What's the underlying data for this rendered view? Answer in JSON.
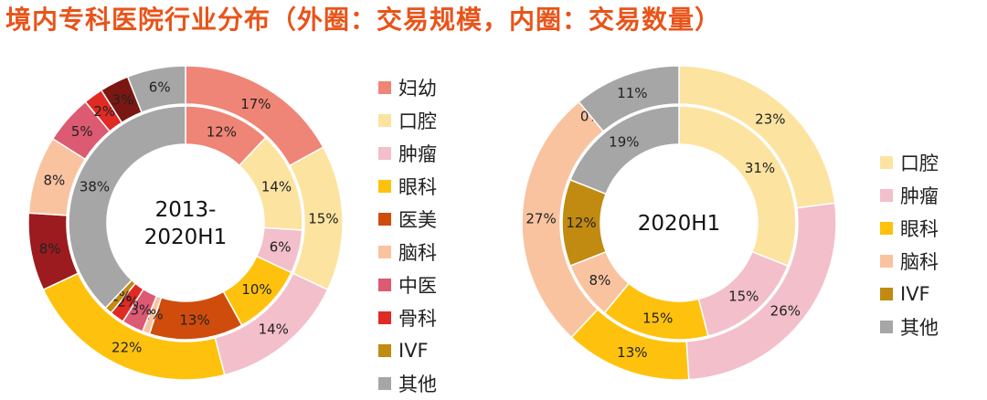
{
  "title": "境内专科医院行业分布（外圈：交易规模，内圈：交易数量）",
  "chart_data": [
    {
      "type": "donut",
      "center_label": [
        "2013-",
        "2020H1"
      ],
      "legend": [
        {
          "name": "妇幼",
          "color": "#EF8576"
        },
        {
          "name": "口腔",
          "color": "#FCE3A0"
        },
        {
          "name": "肿瘤",
          "color": "#F2BFCA"
        },
        {
          "name": "眼科",
          "color": "#FEC20E"
        },
        {
          "name": "医美",
          "color": "#D04C0C"
        },
        {
          "name": "脑科",
          "color": "#F9C3A0"
        },
        {
          "name": "中医",
          "color": "#DC5A72"
        },
        {
          "name": "骨科",
          "color": "#E02A24"
        },
        {
          "name": "IVF",
          "color": "#C18A10"
        },
        {
          "name": "其他",
          "color": "#A6A6A6"
        }
      ],
      "outer_ring": {
        "measure": "交易规模",
        "slices": [
          {
            "name": "妇幼",
            "value": 17,
            "color": "#EF8576",
            "label": "17%"
          },
          {
            "name": "口腔",
            "value": 15,
            "color": "#FCE3A0",
            "label": "15%"
          },
          {
            "name": "肿瘤",
            "value": 14,
            "color": "#F2BFCA",
            "label": "14%"
          },
          {
            "name": "眼科",
            "value": 22,
            "color": "#FEC20E",
            "label": "22%"
          },
          {
            "name": "其他(暗红)",
            "value": 8,
            "color": "#9B1B1E",
            "label": "8%"
          },
          {
            "name": "脑科",
            "value": 8,
            "color": "#F9C3A0",
            "label": "8%"
          },
          {
            "name": "中医",
            "value": 5,
            "color": "#DC5A72",
            "label": "5%"
          },
          {
            "name": "骨科",
            "value": 2,
            "color": "#E02A24",
            "label": "2%"
          },
          {
            "name": "暗红",
            "value": 3,
            "color": "#7A1712",
            "label": "3%"
          },
          {
            "name": "其他",
            "value": 6,
            "color": "#A6A6A6",
            "label": "6%"
          }
        ]
      },
      "inner_ring": {
        "measure": "交易数量",
        "slices": [
          {
            "name": "妇幼",
            "value": 12,
            "color": "#EF8576",
            "label": "12%"
          },
          {
            "name": "口腔",
            "value": 14,
            "color": "#FCE3A0",
            "label": "14%"
          },
          {
            "name": "肿瘤",
            "value": 6,
            "color": "#F2BFCA",
            "label": "6%"
          },
          {
            "name": "眼科",
            "value": 10,
            "color": "#FEC20E",
            "label": "10%"
          },
          {
            "name": "医美",
            "value": 13,
            "color": "#D04C0C",
            "label": "13%"
          },
          {
            "name": "脑科",
            "value": 1,
            "color": "#F9C3A0",
            "label": "1%"
          },
          {
            "name": "中医",
            "value": 3,
            "color": "#DC5A72",
            "label": "3%"
          },
          {
            "name": "骨科",
            "value": 2,
            "color": "#E02A24",
            "label": "2%"
          },
          {
            "name": "IVF",
            "value": 1,
            "color": "#C18A10",
            "label": "1%"
          },
          {
            "name": "其他",
            "value": 38,
            "color": "#A6A6A6",
            "label": "38%"
          }
        ]
      }
    },
    {
      "type": "donut",
      "center_label": [
        "2020H1"
      ],
      "legend": [
        {
          "name": "口腔",
          "color": "#FCE3A0"
        },
        {
          "name": "肿瘤",
          "color": "#F2BFCA"
        },
        {
          "name": "眼科",
          "color": "#FEC20E"
        },
        {
          "name": "脑科",
          "color": "#F9C3A0"
        },
        {
          "name": "IVF",
          "color": "#C18A10"
        },
        {
          "name": "其他",
          "color": "#A6A6A6"
        }
      ],
      "outer_ring": {
        "measure": "交易规模",
        "slices": [
          {
            "name": "口腔",
            "value": 23,
            "color": "#FCE3A0",
            "label": "23%"
          },
          {
            "name": "肿瘤",
            "value": 26,
            "color": "#F2BFCA",
            "label": "26%"
          },
          {
            "name": "眼科",
            "value": 13,
            "color": "#FEC20E",
            "label": "13%"
          },
          {
            "name": "脑科",
            "value": 27,
            "color": "#F9C3A0",
            "label": "27%"
          },
          {
            "name": "IVF",
            "value": 0,
            "color": "#C18A10",
            "label": "0%"
          },
          {
            "name": "其他",
            "value": 11,
            "color": "#A6A6A6",
            "label": "11%"
          }
        ]
      },
      "inner_ring": {
        "measure": "交易数量",
        "slices": [
          {
            "name": "口腔",
            "value": 31,
            "color": "#FCE3A0",
            "label": "31%"
          },
          {
            "name": "肿瘤",
            "value": 15,
            "color": "#F2BFCA",
            "label": "15%"
          },
          {
            "name": "眼科",
            "value": 15,
            "color": "#FEC20E",
            "label": "15%"
          },
          {
            "name": "脑科",
            "value": 8,
            "color": "#F9C3A0",
            "label": "8%"
          },
          {
            "name": "IVF",
            "value": 12,
            "color": "#C18A10",
            "label": "12%"
          },
          {
            "name": "其他",
            "value": 19,
            "color": "#A6A6A6",
            "label": "19%"
          }
        ]
      }
    }
  ]
}
